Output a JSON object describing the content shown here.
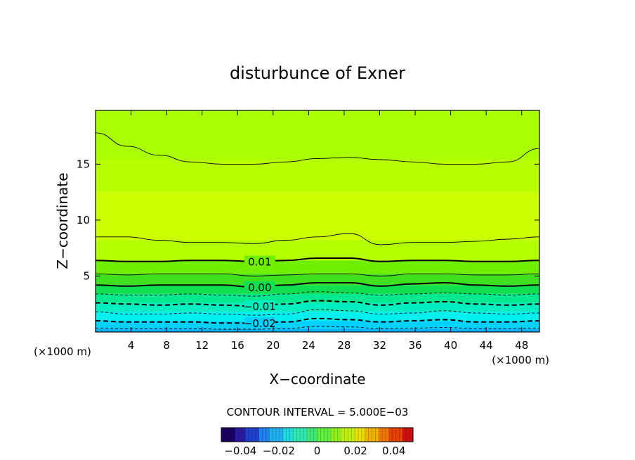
{
  "chart_data": {
    "type": "contour",
    "title": "disturbunce of Exner",
    "xlabel": "X−coordinate",
    "ylabel": "Z−coordinate",
    "x_unit_left": "(×1000 m)",
    "x_unit_right": "(×1000 m)",
    "xlim": [
      0,
      50
    ],
    "ylim": [
      0,
      19.8
    ],
    "x_ticks": [
      4,
      8,
      12,
      16,
      20,
      24,
      28,
      32,
      36,
      40,
      44,
      48
    ],
    "y_ticks": [
      5,
      10,
      15
    ],
    "contour_interval_label": "CONTOUR INTERVAL = 5.000E−03",
    "contour_interval": 0.005,
    "colorbar": {
      "range": [
        -0.05,
        0.05
      ],
      "tick_values": [
        -0.04,
        -0.02,
        0,
        0.02,
        0.04
      ],
      "tick_labels": [
        "−0.04",
        "−0.02",
        "0",
        "0.02",
        "0.04"
      ]
    },
    "contour_labels": [
      "0.01",
      "0.00",
      "−0.01",
      "−0.02"
    ],
    "levels": [
      {
        "value": 0.02,
        "style": "thin",
        "z": [
          17.8,
          16.6,
          15.8,
          15.2,
          15.0,
          15.0,
          15.2,
          15.5,
          15.6,
          15.4,
          15.2,
          15.0,
          15.0,
          15.2,
          16.4
        ]
      },
      {
        "value": 0.015,
        "style": "thin",
        "z": [
          8.5,
          8.5,
          8.2,
          8.0,
          8.0,
          7.9,
          8.2,
          8.5,
          8.8,
          7.8,
          8.0,
          8.0,
          8.1,
          8.3,
          8.5
        ]
      },
      {
        "value": 0.01,
        "style": "thick",
        "z": [
          6.4,
          6.3,
          6.3,
          6.4,
          6.4,
          6.3,
          6.4,
          6.6,
          6.6,
          6.3,
          6.4,
          6.4,
          6.3,
          6.3,
          6.4
        ]
      },
      {
        "value": 0.005,
        "style": "thin",
        "z": [
          5.2,
          5.1,
          5.2,
          5.2,
          5.2,
          5.0,
          5.1,
          5.2,
          5.2,
          5.0,
          5.2,
          5.2,
          5.1,
          5.1,
          5.2
        ]
      },
      {
        "value": 0.0,
        "style": "thick",
        "z": [
          4.2,
          4.1,
          4.2,
          4.2,
          4.2,
          4.0,
          4.2,
          4.4,
          4.4,
          4.1,
          4.3,
          4.4,
          4.2,
          4.1,
          4.2
        ]
      },
      {
        "value": -0.005,
        "style": "thin-dash",
        "z": [
          3.4,
          3.3,
          3.3,
          3.4,
          3.3,
          3.2,
          3.4,
          3.6,
          3.5,
          3.3,
          3.4,
          3.5,
          3.4,
          3.3,
          3.4
        ]
      },
      {
        "value": -0.01,
        "style": "thick-dash",
        "z": [
          2.6,
          2.5,
          2.4,
          2.5,
          2.4,
          2.3,
          2.5,
          2.8,
          2.7,
          2.4,
          2.6,
          2.7,
          2.5,
          2.4,
          2.5
        ]
      },
      {
        "value": -0.015,
        "style": "thin-dash",
        "z": [
          1.8,
          1.6,
          1.6,
          1.7,
          1.6,
          1.5,
          1.6,
          2.0,
          1.9,
          1.6,
          1.7,
          1.9,
          1.7,
          1.6,
          1.7
        ]
      },
      {
        "value": -0.02,
        "style": "thick-dash",
        "z": [
          1.0,
          0.9,
          0.9,
          0.9,
          0.8,
          0.8,
          0.9,
          1.2,
          1.1,
          0.9,
          1.0,
          1.1,
          0.9,
          0.9,
          1.0
        ]
      },
      {
        "value": -0.025,
        "style": "thin-dash",
        "z": [
          0.35,
          0.3,
          0.3,
          0.3,
          0.25,
          0.25,
          0.3,
          0.5,
          0.45,
          0.3,
          0.35,
          0.4,
          0.3,
          0.3,
          0.35
        ]
      }
    ],
    "fill_bands": [
      {
        "z_bottom": 0,
        "color": "#00b4ff"
      },
      {
        "z_bottom": 0.3,
        "color": "#00d2ff"
      },
      {
        "z_bottom": 1.0,
        "color": "#00f0f0"
      },
      {
        "z_bottom": 1.8,
        "color": "#00eec0"
      },
      {
        "z_bottom": 2.6,
        "color": "#00e890"
      },
      {
        "z_bottom": 3.4,
        "color": "#10e050"
      },
      {
        "z_bottom": 4.2,
        "color": "#40e020"
      },
      {
        "z_bottom": 5.2,
        "color": "#70f000"
      },
      {
        "z_bottom": 6.4,
        "color": "#b4ff00"
      },
      {
        "z_bottom": 8.2,
        "color": "#ccff00"
      },
      {
        "z_bottom": 12.5,
        "color": "#b8ff00"
      },
      {
        "z_bottom": 15.4,
        "color": "#aaff00"
      }
    ],
    "colorbar_colors": [
      "#1a0060",
      "#2a1aa0",
      "#2040d0",
      "#2080f0",
      "#20b0f0",
      "#20d8e0",
      "#30e8b0",
      "#40e878",
      "#60f040",
      "#90f020",
      "#c0f010",
      "#e8e000",
      "#f0b000",
      "#f07800",
      "#e84000",
      "#d01010"
    ]
  }
}
